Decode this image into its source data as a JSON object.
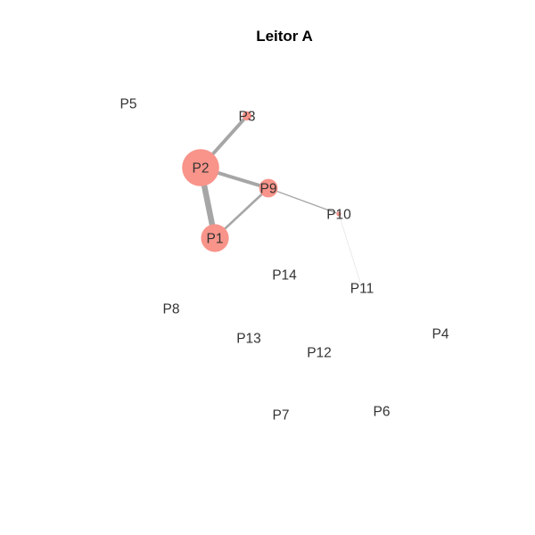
{
  "title": "Leitor A",
  "colors": {
    "node_fill": "#F8948A",
    "edge": "#A6A6A6",
    "label": "#333333",
    "title": "#000000",
    "background": "#FFFFFF"
  },
  "nodes": [
    {
      "id": "P1",
      "label": "P1",
      "size": 3,
      "highlighted": true
    },
    {
      "id": "P2",
      "label": "P2",
      "size": 4,
      "highlighted": true
    },
    {
      "id": "P3",
      "label": "P3",
      "size": 1,
      "highlighted": true
    },
    {
      "id": "P4",
      "label": "P4",
      "size": 0,
      "highlighted": false
    },
    {
      "id": "P5",
      "label": "P5",
      "size": 0,
      "highlighted": false
    },
    {
      "id": "P6",
      "label": "P6",
      "size": 0,
      "highlighted": false
    },
    {
      "id": "P7",
      "label": "P7",
      "size": 0,
      "highlighted": false
    },
    {
      "id": "P8",
      "label": "P8",
      "size": 0,
      "highlighted": false
    },
    {
      "id": "P9",
      "label": "P9",
      "size": 2,
      "highlighted": true
    },
    {
      "id": "P10",
      "label": "P10",
      "size": 0.5,
      "highlighted": true
    },
    {
      "id": "P11",
      "label": "P11",
      "size": 0,
      "highlighted": false
    },
    {
      "id": "P12",
      "label": "P12",
      "size": 0,
      "highlighted": false
    },
    {
      "id": "P13",
      "label": "P13",
      "size": 0,
      "highlighted": false
    },
    {
      "id": "P14",
      "label": "P14",
      "size": 0,
      "highlighted": false
    }
  ],
  "edges": [
    {
      "source": "P1",
      "target": "P2",
      "weight": 5
    },
    {
      "source": "P2",
      "target": "P3",
      "weight": 3
    },
    {
      "source": "P2",
      "target": "P9",
      "weight": 3
    },
    {
      "source": "P1",
      "target": "P9",
      "weight": 2
    },
    {
      "source": "P9",
      "target": "P10",
      "weight": 1
    },
    {
      "source": "P10",
      "target": "P11",
      "weight": 0.3
    }
  ]
}
